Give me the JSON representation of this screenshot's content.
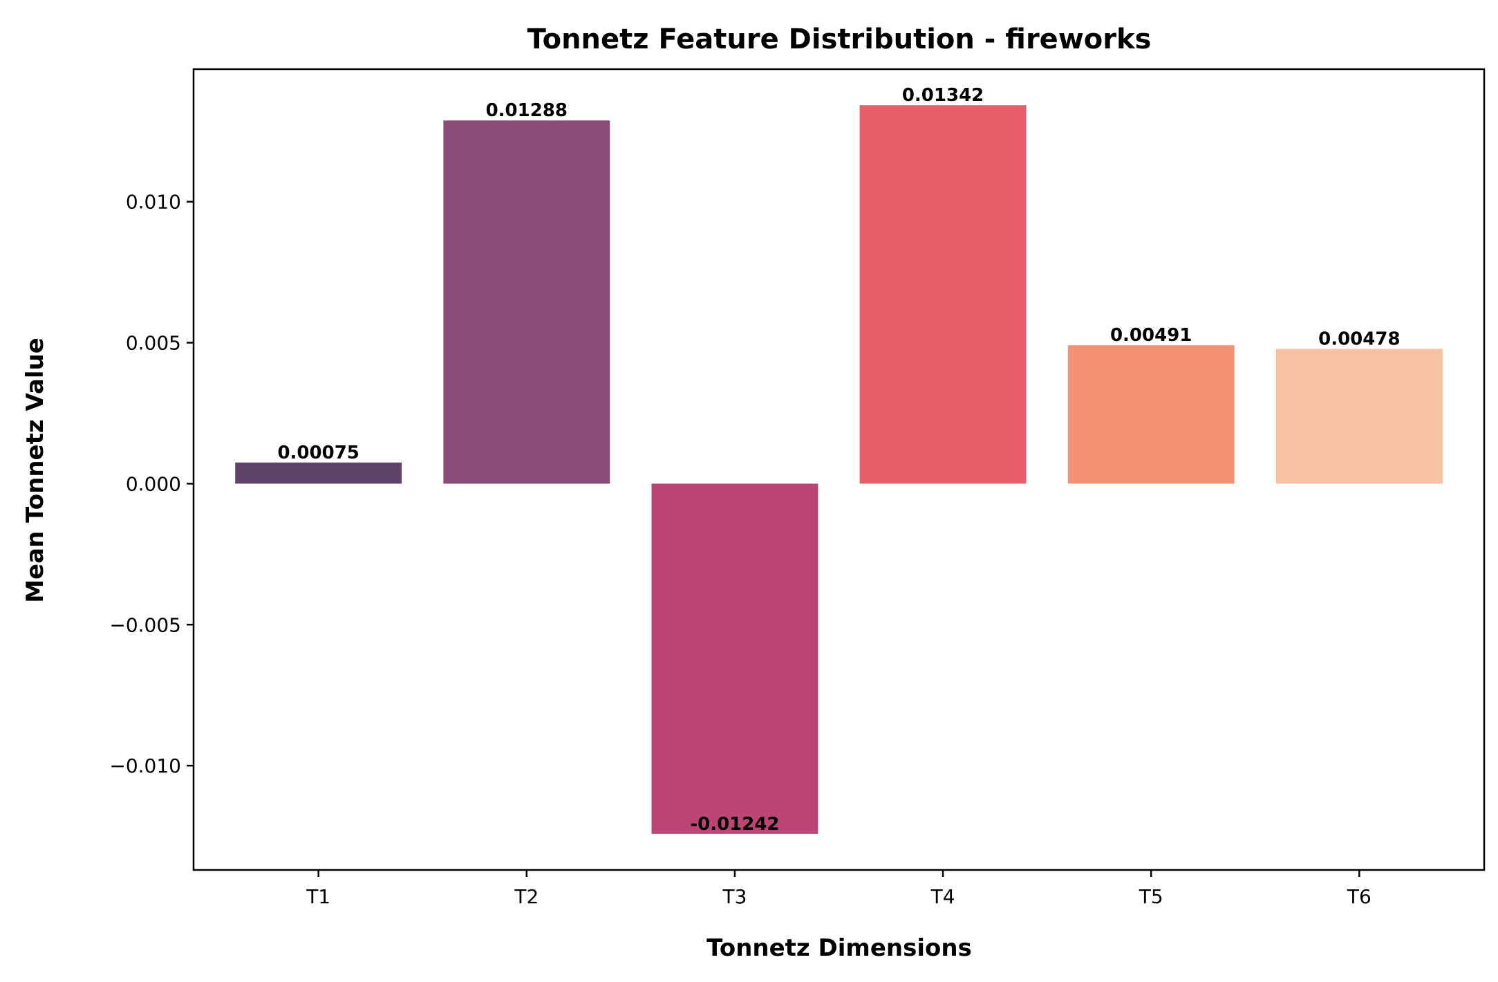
{
  "chart_data": {
    "type": "bar",
    "title": "Tonnetz Feature Distribution - fireworks",
    "xlabel": "Tonnetz Dimensions",
    "ylabel": "Mean Tonnetz Value",
    "categories": [
      "T1",
      "T2",
      "T3",
      "T4",
      "T5",
      "T6"
    ],
    "values": [
      0.00075,
      0.01288,
      -0.01242,
      0.01342,
      0.00491,
      0.00478
    ],
    "value_labels": [
      "0.00075",
      "0.01288",
      "-0.01242",
      "0.01342",
      "0.00491",
      "0.00478"
    ],
    "colors": [
      "#5e4466",
      "#8a4b76",
      "#bc4576",
      "#e85d6a",
      "#f49275",
      "#f6c2a3"
    ],
    "ylim": [
      -0.0137,
      0.0147
    ],
    "yticks": [
      -0.01,
      -0.005,
      0.0,
      0.005,
      0.01
    ],
    "ytick_labels": [
      "−0.010",
      "−0.005",
      "0.000",
      "0.005",
      "0.010"
    ],
    "grid": false,
    "legend": "none"
  }
}
